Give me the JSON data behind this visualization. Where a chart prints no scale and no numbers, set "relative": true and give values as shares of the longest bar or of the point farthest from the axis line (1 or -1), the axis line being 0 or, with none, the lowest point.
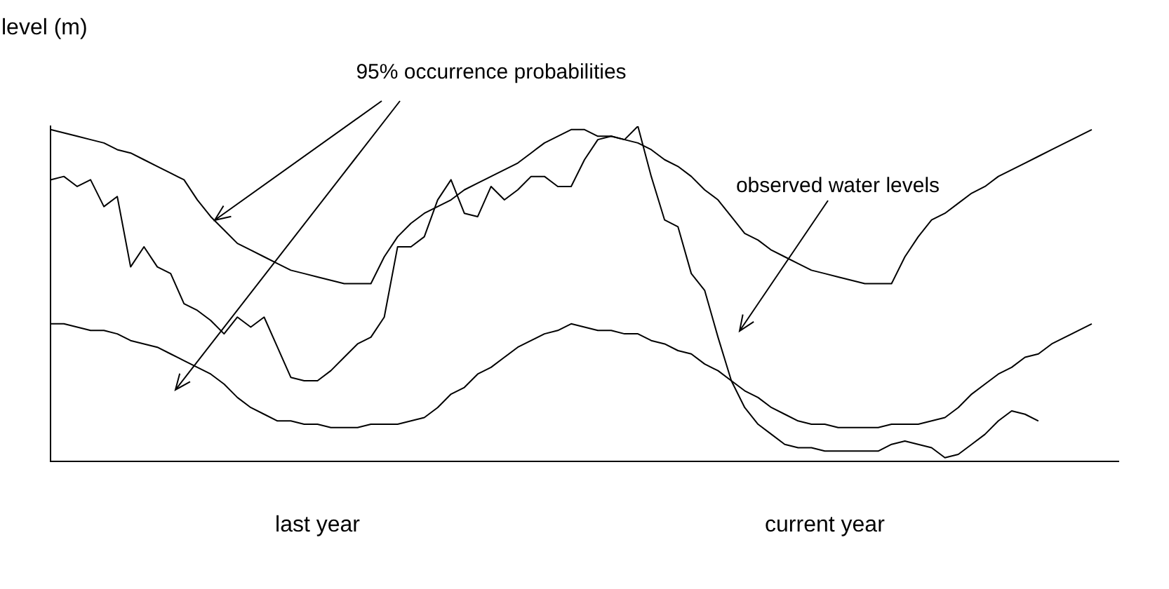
{
  "chart_data": {
    "type": "line",
    "relative": true,
    "ylabel": "level (m)",
    "legend": false,
    "grid": false,
    "marker": "none",
    "line_style": "solid",
    "categories": [
      null,
      null,
      null,
      null,
      null,
      null,
      null,
      null,
      null,
      null,
      null,
      null,
      null,
      null,
      null,
      null,
      null,
      null,
      null,
      null,
      "last year",
      null,
      null,
      null,
      null,
      null,
      null,
      null,
      null,
      null,
      null,
      null,
      null,
      null,
      null,
      null,
      null,
      null,
      null,
      null,
      null,
      null,
      null,
      null,
      null,
      null,
      null,
      null,
      null,
      null,
      null,
      null,
      null,
      null,
      null,
      null,
      null,
      null,
      "current year",
      null,
      null,
      null,
      null,
      null,
      null,
      null,
      null,
      null,
      null,
      null,
      null,
      null,
      null,
      null,
      null,
      null,
      null,
      null,
      null,
      null,
      null
    ],
    "series": [
      {
        "color": "#000000",
        "values": [
          0.99,
          0.98,
          0.97,
          0.96,
          0.95,
          0.93,
          0.92,
          0.9,
          0.88,
          0.86,
          0.84,
          0.78,
          0.73,
          0.69,
          0.65,
          0.63,
          0.61,
          0.59,
          0.57,
          0.56,
          0.55,
          0.54,
          0.53,
          0.53,
          0.53,
          0.61,
          0.67,
          0.71,
          0.74,
          0.76,
          0.78,
          0.81,
          0.83,
          0.85,
          0.87,
          0.89,
          0.92,
          0.95,
          0.97,
          0.99,
          0.99,
          0.97,
          0.97,
          0.96,
          0.95,
          0.93,
          0.9,
          0.88,
          0.85,
          0.81,
          0.78,
          0.73,
          0.68,
          0.66,
          0.63,
          0.61,
          0.59,
          0.57,
          0.56,
          0.55,
          0.54,
          0.53,
          0.53,
          0.53,
          0.61,
          0.67,
          0.72,
          0.74,
          0.77,
          0.8,
          0.82,
          0.85,
          0.87,
          0.89,
          0.91,
          0.93,
          0.95,
          0.97,
          0.99,
          null,
          null
        ]
      },
      {
        "color": "#000000",
        "values": [
          0.41,
          0.41,
          0.4,
          0.39,
          0.39,
          0.38,
          0.36,
          0.35,
          0.34,
          0.32,
          0.3,
          0.28,
          0.26,
          0.23,
          0.19,
          0.16,
          0.14,
          0.12,
          0.12,
          0.11,
          0.11,
          0.1,
          0.1,
          0.1,
          0.11,
          0.11,
          0.11,
          0.12,
          0.13,
          0.16,
          0.2,
          0.22,
          0.26,
          0.28,
          0.31,
          0.34,
          0.36,
          0.38,
          0.39,
          0.41,
          0.4,
          0.39,
          0.39,
          0.38,
          0.38,
          0.36,
          0.35,
          0.33,
          0.32,
          0.29,
          0.27,
          0.24,
          0.21,
          0.19,
          0.16,
          0.14,
          0.12,
          0.11,
          0.11,
          0.1,
          0.1,
          0.1,
          0.1,
          0.11,
          0.11,
          0.11,
          0.12,
          0.13,
          0.16,
          0.2,
          0.23,
          0.26,
          0.28,
          0.31,
          0.32,
          0.35,
          0.37,
          0.39,
          0.41,
          null,
          null
        ]
      },
      {
        "color": "#000000",
        "values": [
          0.84,
          0.85,
          0.82,
          0.84,
          0.76,
          0.79,
          0.58,
          0.64,
          0.58,
          0.56,
          0.47,
          0.45,
          0.42,
          0.38,
          0.43,
          0.4,
          0.43,
          0.34,
          0.25,
          0.24,
          0.24,
          0.27,
          0.31,
          0.35,
          0.37,
          0.43,
          0.64,
          0.64,
          0.67,
          0.78,
          0.84,
          0.74,
          0.73,
          0.82,
          0.78,
          0.81,
          0.85,
          0.85,
          0.82,
          0.82,
          0.9,
          0.96,
          0.97,
          0.96,
          1.0,
          0.85,
          0.72,
          0.7,
          0.56,
          0.51,
          0.37,
          0.24,
          0.16,
          0.11,
          0.08,
          0.05,
          0.04,
          0.04,
          0.03,
          0.03,
          0.03,
          0.03,
          0.03,
          0.05,
          0.06,
          0.05,
          0.04,
          0.01,
          0.02,
          0.05,
          0.08,
          0.12,
          0.15,
          0.14,
          0.12,
          null,
          null,
          null,
          null,
          null,
          null
        ]
      }
    ],
    "annotations": [
      "95% occurrence probabilities",
      "observed water levels"
    ]
  }
}
